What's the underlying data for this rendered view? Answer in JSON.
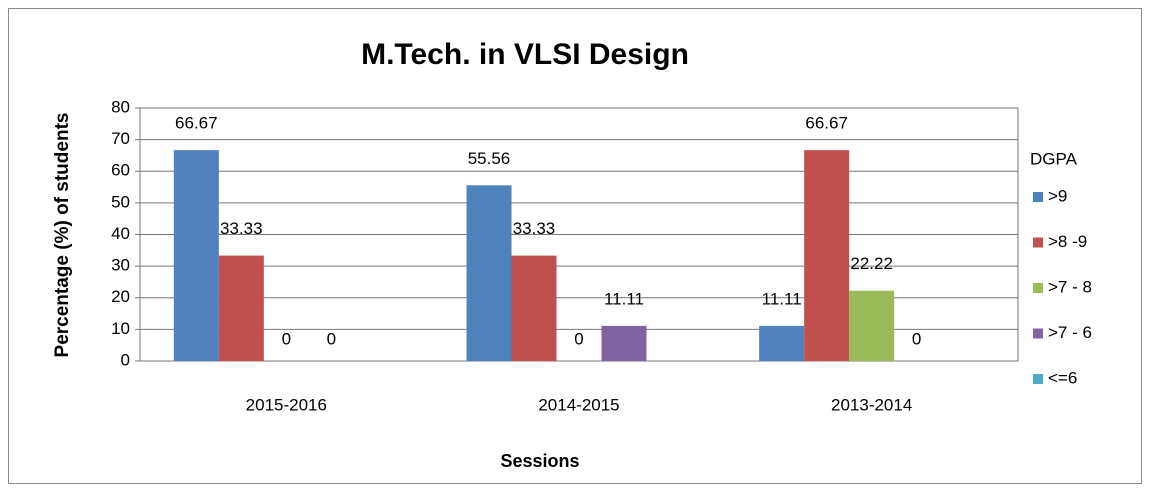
{
  "chart_data": {
    "type": "bar",
    "title": "M.Tech. in VLSI Design",
    "xlabel": "Sessions",
    "ylabel": "Percentage (%) of students",
    "categories": [
      "2015-2016",
      "2014-2015",
      "2013-2014"
    ],
    "series": [
      {
        "name": ">9",
        "color": "#4f81bd",
        "values": [
          66.67,
          55.56,
          11.11
        ]
      },
      {
        "name": ">8 -9",
        "color": "#c0504d",
        "values": [
          33.33,
          33.33,
          66.67
        ]
      },
      {
        "name": ">7 - 8",
        "color": "#9bbb59",
        "values": [
          0,
          0,
          22.22
        ]
      },
      {
        "name": ">7 - 6",
        "color": "#8064a2",
        "values": [
          0,
          11.11,
          0
        ]
      },
      {
        "name": "<=6",
        "color": "#4bacc6",
        "values": [
          null,
          null,
          null
        ]
      }
    ],
    "legend_title": "DGPA",
    "legend": "right",
    "ylim": [
      0,
      80
    ],
    "yticks": [
      0,
      10,
      20,
      30,
      40,
      50,
      60,
      70,
      80
    ],
    "grid": true
  }
}
